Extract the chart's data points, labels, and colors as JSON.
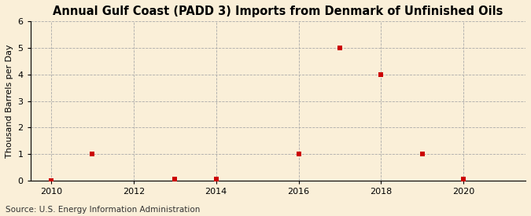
{
  "title": "Annual Gulf Coast (PADD 3) Imports from Denmark of Unfinished Oils",
  "ylabel": "Thousand Barrels per Day",
  "source": "Source: U.S. Energy Information Administration",
  "background_color": "#faefd8",
  "plot_background_color": "#faefd8",
  "years": [
    2010,
    2011,
    2013,
    2014,
    2016,
    2017,
    2018,
    2019,
    2020
  ],
  "values": [
    0,
    1,
    0.05,
    0.05,
    1,
    5,
    4,
    1,
    0.05
  ],
  "marker_color": "#cc0000",
  "marker_size": 4,
  "xlim": [
    2009.5,
    2021.5
  ],
  "ylim": [
    0,
    6
  ],
  "yticks": [
    0,
    1,
    2,
    3,
    4,
    5,
    6
  ],
  "xticks": [
    2010,
    2012,
    2014,
    2016,
    2018,
    2020
  ],
  "grid_color": "#aaaaaa",
  "grid_linestyle": "--",
  "title_fontsize": 10.5,
  "label_fontsize": 8,
  "tick_fontsize": 8,
  "source_fontsize": 7.5
}
